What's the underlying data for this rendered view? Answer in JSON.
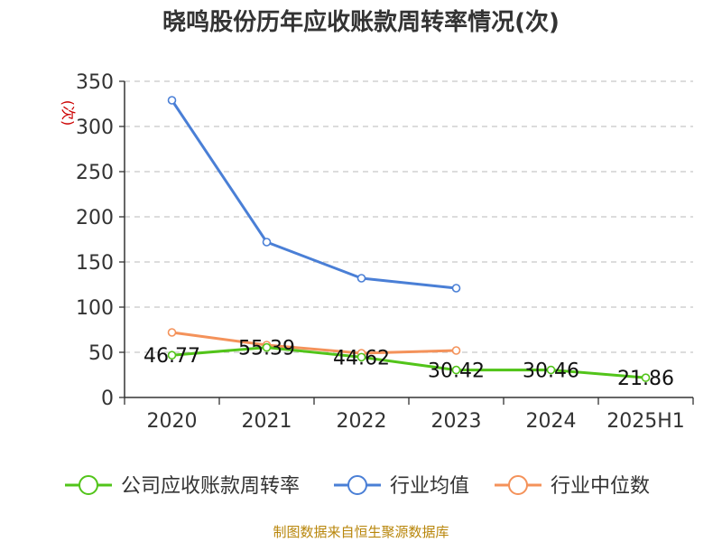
{
  "chart_data": {
    "type": "line",
    "title": "晓鸣股份历年应收账款周转率情况(次)",
    "unit_label": "(次)",
    "categories": [
      "2020",
      "2021",
      "2022",
      "2023",
      "2024",
      "2025H1"
    ],
    "ylim": [
      0,
      350
    ],
    "yticks": [
      0,
      50,
      100,
      150,
      200,
      250,
      300,
      350
    ],
    "grid": true,
    "legend_position": "bottom",
    "series": [
      {
        "name": "公司应收账款周转率",
        "color": "#52c41a",
        "values": [
          46.77,
          55.39,
          44.62,
          30.42,
          30.46,
          21.86
        ],
        "labels": [
          "46.77",
          "55.39",
          "44.62",
          "30.42",
          "30.46",
          "21.86"
        ]
      },
      {
        "name": "行业均值",
        "color": "#4a7fd6",
        "values": [
          329,
          172,
          132,
          121,
          null,
          null
        ]
      },
      {
        "name": "行业中位数",
        "color": "#f4925a",
        "values": [
          72,
          58,
          49,
          52,
          null,
          null
        ]
      }
    ],
    "source": "制图数据来自恒生聚源数据库"
  }
}
